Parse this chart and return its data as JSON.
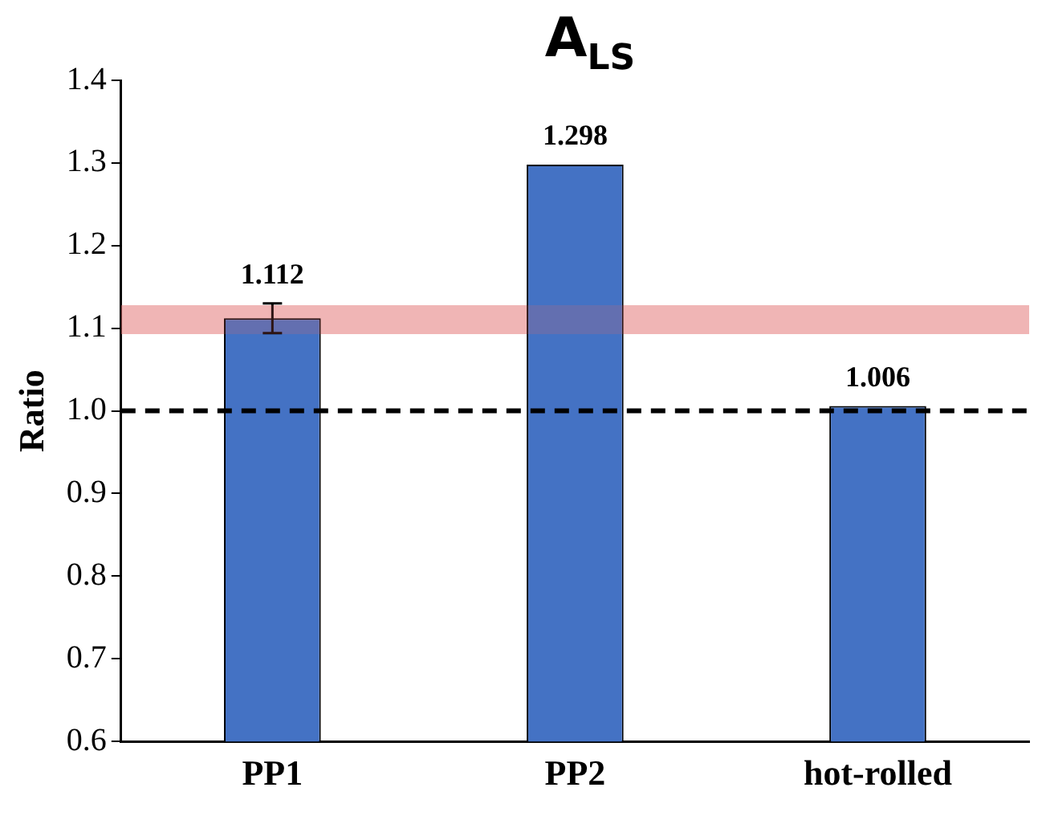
{
  "chart_data": {
    "type": "bar",
    "title": "A$_{LS}$",
    "ylabel": "Ratio",
    "categories": [
      "PP1",
      "PP2",
      "hot-rolled"
    ],
    "values": [
      1.112,
      1.298,
      1.006
    ],
    "errors": [
      0.018,
      null,
      null
    ],
    "color": "#4472c4",
    "ylim": [
      0.6,
      1.4
    ],
    "yticks": [
      {
        "value": 0.6,
        "label": "0.6"
      },
      {
        "value": 0.7,
        "label": "0.7"
      },
      {
        "value": 0.8,
        "label": "0.8"
      },
      {
        "value": 0.9,
        "label": "0.9"
      },
      {
        "value": 1,
        "label": "1.0"
      },
      {
        "value": 1.1,
        "label": "1.1"
      },
      {
        "value": 1.2,
        "label": "1.2"
      },
      {
        "value": 1.3,
        "label": "1.3"
      },
      {
        "value": 1.4,
        "label": "1.4"
      }
    ],
    "data_labels": true,
    "grid": false,
    "legend": false,
    "ref_lines": [
      {
        "axis": "y",
        "value": 1.0,
        "line_style": "dashed",
        "color": "#000000"
      }
    ],
    "bands": [
      {
        "axis": "y",
        "from": 1.093,
        "to": 1.128,
        "color": "#e06666"
      }
    ]
  }
}
